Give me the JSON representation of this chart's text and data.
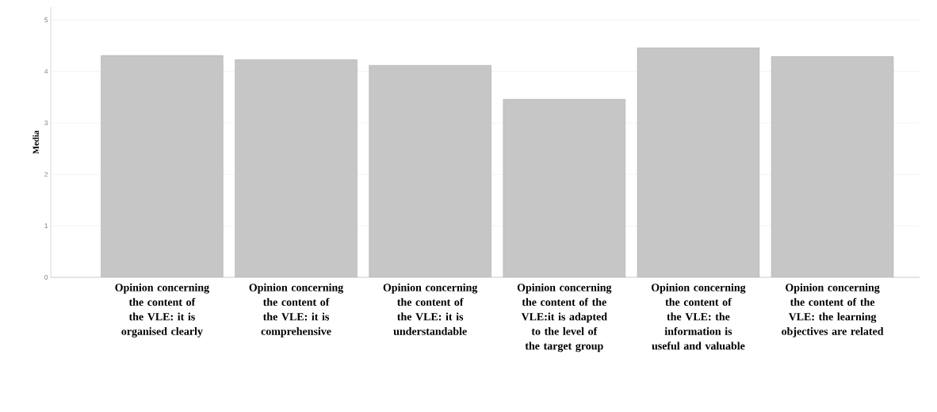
{
  "chart_data": {
    "type": "bar",
    "ylabel": "Media",
    "categories": [
      "Opinion concerning the content of the VLE: it is organised clearly",
      "Opinion concerning the content of the VLE: it is comprehensive",
      "Opinion concerning the content of the VLE: it is understandable",
      "Opinion concerning the content of the VLE:it is adapted to the level of the target group",
      "Opinion concerning the content of the VLE: the information is useful and valuable",
      "Opinion concerning the content of the VLE: the learning objectives are related"
    ],
    "values": [
      4.31,
      4.23,
      4.12,
      3.46,
      4.46,
      4.29
    ],
    "color": "#c6c6c6",
    "ylim": [
      0,
      5.25
    ],
    "yticks": [
      0,
      1,
      2,
      3,
      4,
      5
    ],
    "grid": "y"
  }
}
